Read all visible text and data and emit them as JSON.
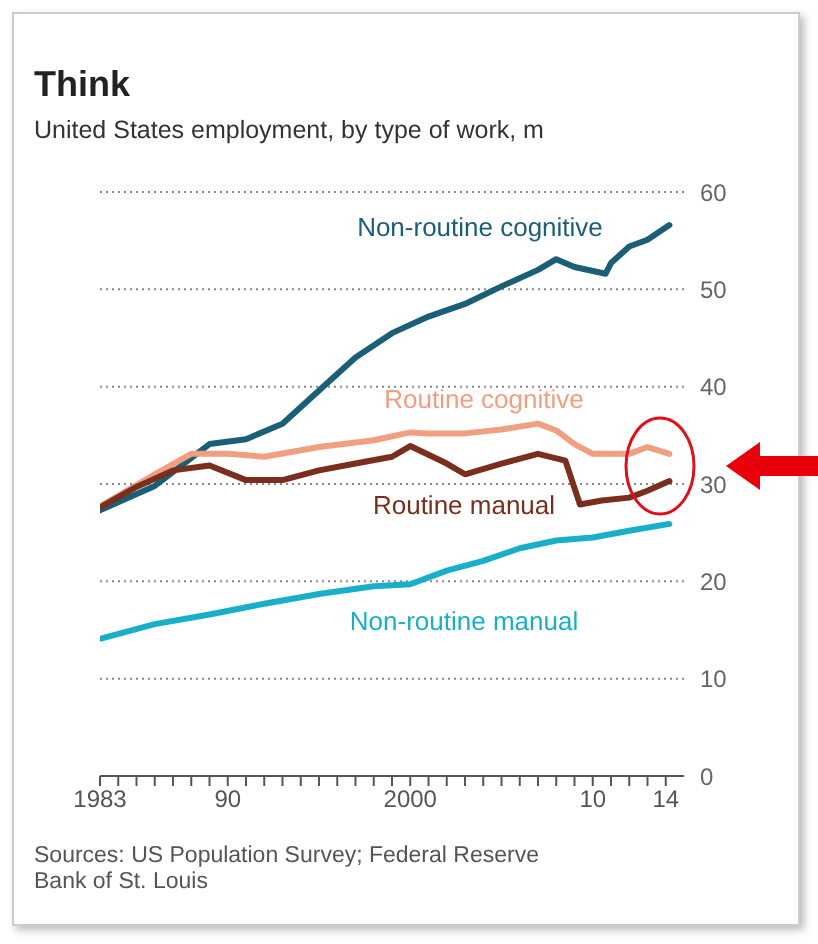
{
  "chart_data": {
    "type": "line",
    "title": "Think",
    "subtitle": "United States employment, by type of work, m",
    "xlim": [
      1983,
      2015
    ],
    "ylim": [
      0,
      60
    ],
    "yticks": [
      0,
      10,
      20,
      30,
      40,
      50,
      60
    ],
    "xticks": [
      {
        "value": 1983,
        "label": "1983"
      },
      {
        "value": 1984,
        "label": null
      },
      {
        "value": 1985,
        "label": null
      },
      {
        "value": 1986,
        "label": null
      },
      {
        "value": 1987,
        "label": null
      },
      {
        "value": 1988,
        "label": null
      },
      {
        "value": 1989,
        "label": null
      },
      {
        "value": 1990,
        "label": "90"
      },
      {
        "value": 1991,
        "label": null
      },
      {
        "value": 1992,
        "label": null
      },
      {
        "value": 1993,
        "label": null
      },
      {
        "value": 1994,
        "label": null
      },
      {
        "value": 1995,
        "label": null
      },
      {
        "value": 1996,
        "label": null
      },
      {
        "value": 1997,
        "label": null
      },
      {
        "value": 1998,
        "label": null
      },
      {
        "value": 1999,
        "label": null
      },
      {
        "value": 2000,
        "label": "2000"
      },
      {
        "value": 2001,
        "label": null
      },
      {
        "value": 2002,
        "label": null
      },
      {
        "value": 2003,
        "label": null
      },
      {
        "value": 2004,
        "label": null
      },
      {
        "value": 2005,
        "label": null
      },
      {
        "value": 2006,
        "label": null
      },
      {
        "value": 2007,
        "label": null
      },
      {
        "value": 2008,
        "label": null
      },
      {
        "value": 2009,
        "label": null
      },
      {
        "value": 2010,
        "label": "10"
      },
      {
        "value": 2011,
        "label": null
      },
      {
        "value": 2012,
        "label": null
      },
      {
        "value": 2013,
        "label": null
      },
      {
        "value": 2014,
        "label": "14"
      }
    ],
    "grid": "y",
    "series": [
      {
        "name": "Non-routine cognitive",
        "color": "#1b5e78",
        "x": [
          1983,
          1986,
          1989,
          1991,
          1993,
          1995,
          1997,
          1999,
          2001,
          2003,
          2005,
          2007,
          2008,
          2009,
          2010.7,
          2011,
          2012,
          2013,
          2014.2
        ],
        "values": [
          27.3,
          29.8,
          34.1,
          34.6,
          36.2,
          39.6,
          43,
          45.5,
          47.2,
          48.5,
          50.3,
          52,
          53.1,
          52.3,
          51.6,
          52.7,
          54.4,
          55.1,
          56.6
        ]
      },
      {
        "name": "Routine cognitive",
        "color": "#f0a080",
        "x": [
          1983,
          1986,
          1988,
          1990,
          1992,
          1995,
          1998,
          2000,
          2001,
          2003,
          2005,
          2007,
          2008,
          2009,
          2010,
          2012,
          2013,
          2014.2
        ],
        "values": [
          27.7,
          31,
          33.1,
          33.1,
          32.8,
          33.8,
          34.5,
          35.3,
          35.2,
          35.2,
          35.6,
          36.2,
          35.5,
          34.1,
          33.1,
          33.1,
          33.8,
          33.1
        ]
      },
      {
        "name": "Routine manual",
        "color": "#7a2e1e",
        "x": [
          1983,
          1985,
          1987,
          1989,
          1991,
          1993,
          1995,
          1997,
          1999,
          2000,
          2002,
          2003,
          2005,
          2007,
          2008.5,
          2009.3,
          2010.5,
          2012,
          2013,
          2014.2
        ],
        "values": [
          27.6,
          29.7,
          31.4,
          31.9,
          30.4,
          30.4,
          31.4,
          32.1,
          32.8,
          33.9,
          32.1,
          31,
          32.1,
          33.1,
          32.4,
          27.9,
          28.3,
          28.6,
          29.3,
          30.3
        ]
      },
      {
        "name": "Non-routine manual",
        "color": "#1aafc8",
        "x": [
          1983,
          1986,
          1989,
          1992,
          1995,
          1998,
          2000,
          2002,
          2004,
          2006,
          2008,
          2010,
          2012,
          2014.2
        ],
        "values": [
          14.1,
          15.6,
          16.6,
          17.7,
          18.7,
          19.5,
          19.7,
          21.1,
          22.1,
          23.4,
          24.2,
          24.5,
          25.2,
          25.9
        ]
      }
    ],
    "annotations": [
      "Sources: US Population Survey; Federal Reserve Bank of St. Louis"
    ]
  }
}
